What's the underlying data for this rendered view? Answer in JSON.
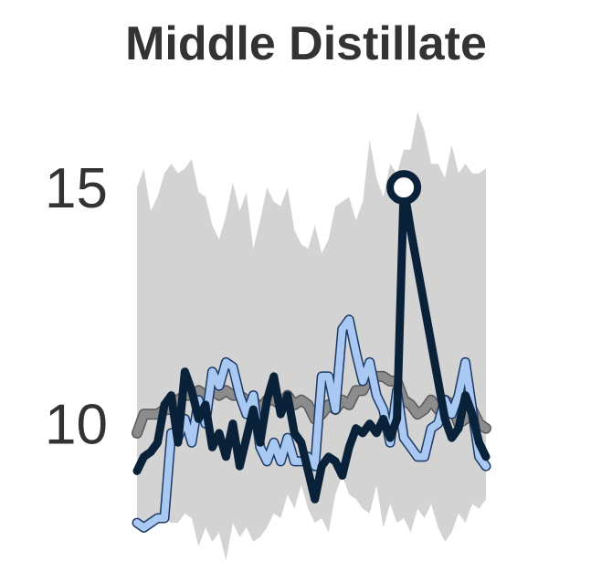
{
  "chart_data": {
    "type": "line",
    "title": "Middle Distillate",
    "xlabel": "",
    "ylabel": "",
    "ylim": [
      7.4,
      16.8
    ],
    "yticks": [
      10,
      15
    ],
    "grid": false,
    "legend": "none",
    "x": [
      0,
      1,
      2,
      3,
      4,
      5,
      6,
      7,
      8,
      9,
      10,
      11,
      12,
      13,
      14,
      15,
      16,
      17,
      18,
      19,
      20,
      21,
      22,
      23,
      24,
      25,
      26,
      27,
      28,
      29,
      30,
      31,
      32,
      33,
      34,
      35,
      36,
      37,
      38,
      39,
      40,
      41,
      42,
      43,
      44,
      45,
      46,
      47,
      48,
      49,
      50,
      51
    ],
    "range_band": {
      "upper": [
        15.0,
        15.4,
        14.5,
        14.8,
        15.3,
        15.5,
        15.3,
        15.4,
        15.6,
        14.9,
        14.8,
        14.2,
        13.9,
        14.4,
        15.1,
        14.5,
        14.9,
        13.7,
        14.3,
        15.0,
        14.7,
        14.6,
        15.0,
        14.1,
        13.8,
        13.7,
        14.2,
        13.6,
        13.9,
        14.6,
        14.7,
        14.8,
        14.3,
        14.7,
        16.0,
        15.2,
        14.8,
        15.5,
        15.3,
        15.8,
        15.8,
        16.6,
        16.2,
        15.5,
        15.5,
        15.2,
        15.9,
        15.3,
        15.5,
        15.3,
        15.3,
        15.4
      ],
      "lower": [
        7.9,
        7.8,
        7.9,
        8.0,
        8.0,
        7.9,
        7.9,
        8.1,
        8.0,
        7.4,
        7.8,
        7.5,
        7.7,
        7.1,
        7.9,
        7.6,
        7.8,
        7.5,
        7.6,
        7.8,
        8.1,
        8.0,
        8.5,
        8.2,
        8.7,
        8.2,
        7.9,
        8.0,
        7.7,
        8.5,
        8.9,
        8.5,
        8.4,
        8.2,
        8.1,
        8.7,
        7.8,
        8.3,
        7.9,
        8.0,
        7.7,
        8.2,
        8.0,
        8.3,
        7.8,
        7.5,
        7.7,
        8.1,
        7.9,
        8.3,
        8.2,
        8.4
      ]
    },
    "series": [
      {
        "color": "#8c8c8c",
        "values": [
          9.8,
          10.2,
          10.2,
          10.2,
          10.3,
          10.3,
          10.5,
          10.6,
          10.6,
          10.7,
          10.6,
          10.7,
          10.6,
          10.7,
          10.6,
          10.6,
          10.5,
          10.5,
          10.3,
          10.5,
          10.5,
          10.4,
          10.6,
          10.4,
          10.5,
          10.4,
          10.1,
          10.2,
          10.4,
          10.3,
          10.5,
          10.4,
          10.7,
          10.7,
          11.0,
          11.0,
          11.0,
          10.9,
          10.9,
          10.5,
          10.4,
          10.2,
          10.3,
          10.5,
          10.3,
          10.5,
          10.4,
          10.0,
          10.1,
          10.3,
          10.0,
          9.9
        ]
      },
      {
        "color": "#a9c9f2",
        "values": [
          7.9,
          7.8,
          7.9,
          8.0,
          8.0,
          9.8,
          9.7,
          10.1,
          9.6,
          10.5,
          10.0,
          11.1,
          10.8,
          11.3,
          11.2,
          10.6,
          10.2,
          10.6,
          9.5,
          9.2,
          9.6,
          9.2,
          9.7,
          9.2,
          9.2,
          9.3,
          9.1,
          11.0,
          11.0,
          10.3,
          12.0,
          12.2,
          11.5,
          10.9,
          11.3,
          10.6,
          10.3,
          9.6,
          10.7,
          9.7,
          9.5,
          9.3,
          9.3,
          9.9,
          10.0,
          10.5,
          10.2,
          10.6,
          11.3,
          10.3,
          9.3,
          9.1
        ]
      },
      {
        "color": "#0a2239",
        "values": [
          9.0,
          9.3,
          9.4,
          9.6,
          10.4,
          10.6,
          9.6,
          11.1,
          10.7,
          10.1,
          10.4,
          9.5,
          9.8,
          9.3,
          10.0,
          9.1,
          9.7,
          10.3,
          9.6,
          10.5,
          11.0,
          10.2,
          10.6,
          9.8,
          9.6,
          9.0,
          8.4,
          9.1,
          9.3,
          9.2,
          8.9,
          9.5,
          9.9,
          9.8,
          10.0,
          9.8,
          10.1,
          9.7,
          10.1,
          15.0,
          14.1,
          13.3,
          12.5,
          11.7,
          10.9,
          10.1,
          9.7,
          9.9,
          10.6,
          10.2,
          9.6,
          9.3
        ]
      }
    ],
    "highlight_point": {
      "x": 39,
      "y": 15.0
    }
  }
}
